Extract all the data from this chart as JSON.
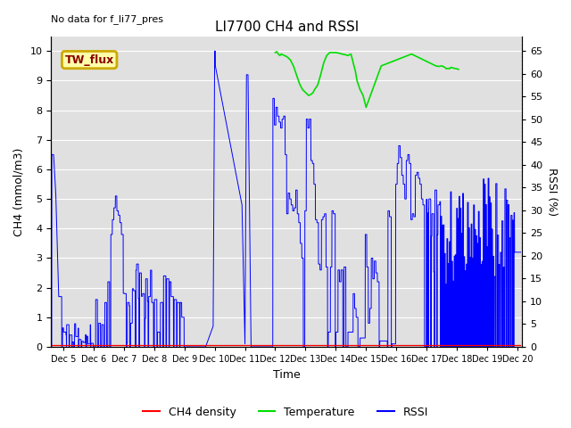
{
  "title": "LI7700 CH4 and RSSI",
  "annotation": "No data for f_li77_pres",
  "xlabel": "Time",
  "ylabel_left": "CH4 (mmol/m3)",
  "ylabel_right": "RSSI (%)",
  "box_label": "TW_flux",
  "ylim_left": [
    0.0,
    10.5
  ],
  "ylim_right": [
    0,
    68.25
  ],
  "yticks_left": [
    0.0,
    1.0,
    2.0,
    3.0,
    4.0,
    5.0,
    6.0,
    7.0,
    8.0,
    9.0,
    10.0
  ],
  "yticks_right": [
    0,
    5,
    10,
    15,
    20,
    25,
    30,
    35,
    40,
    45,
    50,
    55,
    60,
    65
  ],
  "xstart": 4.6,
  "xend": 20.15,
  "bg_color": "#e0e0e0",
  "grid_color": "#ffffff",
  "title_fontsize": 11,
  "axis_fontsize": 9,
  "tick_fontsize": 8,
  "xtick_fontsize": 7,
  "ch4_color": "red",
  "temp_color": "#00dd00",
  "rssi_color": "blue",
  "legend_labels": [
    "CH4 density",
    "Temperature",
    "RSSI"
  ],
  "legend_colors": [
    "red",
    "#00dd00",
    "blue"
  ],
  "box_color": "#ffffaa",
  "box_edge_color": "#ccaa00",
  "box_text_color": "#8b0000"
}
